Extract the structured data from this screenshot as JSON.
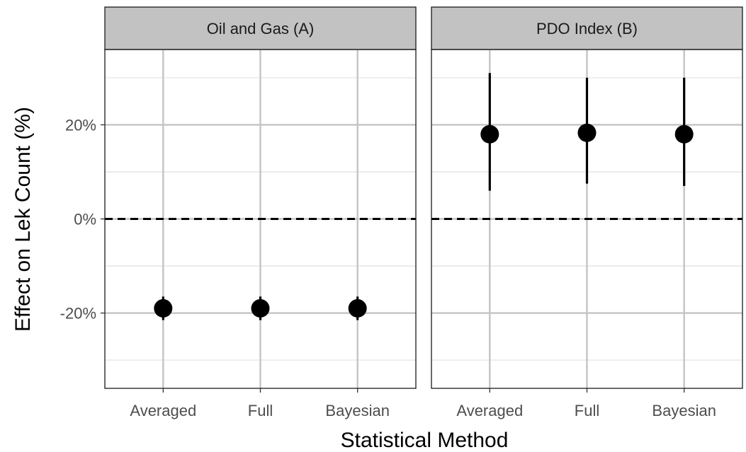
{
  "chart_data": {
    "type": "scatter",
    "xlabel": "Statistical Method",
    "ylabel": "Effect on Lek Count (%)",
    "categories": [
      "Averaged",
      "Full",
      "Bayesian"
    ],
    "ylim": [
      -36,
      36
    ],
    "y_ticks": [
      -20,
      0,
      20
    ],
    "y_tick_labels": [
      "-20%",
      "0%",
      "20%"
    ],
    "reference_line": 0,
    "grid": true,
    "panels": [
      {
        "title": "Oil and Gas (A)",
        "points": [
          {
            "category": "Averaged",
            "estimate": -19.0,
            "lower": -21.5,
            "upper": -16.5
          },
          {
            "category": "Full",
            "estimate": -19.0,
            "lower": -21.5,
            "upper": -16.5
          },
          {
            "category": "Bayesian",
            "estimate": -19.0,
            "lower": -21.5,
            "upper": -16.5
          }
        ]
      },
      {
        "title": "PDO Index (B)",
        "points": [
          {
            "category": "Averaged",
            "estimate": 18.0,
            "lower": 6.0,
            "upper": 31.0
          },
          {
            "category": "Full",
            "estimate": 18.3,
            "lower": 7.5,
            "upper": 30.0
          },
          {
            "category": "Bayesian",
            "estimate": 18.0,
            "lower": 7.0,
            "upper": 30.0
          }
        ]
      }
    ],
    "colors": {
      "point": "#000000",
      "strip_fill": "#c2c2c2",
      "grid_major": "#c4c4c4",
      "grid_minor": "#e0e0e0",
      "reference_line": "#000000"
    }
  }
}
